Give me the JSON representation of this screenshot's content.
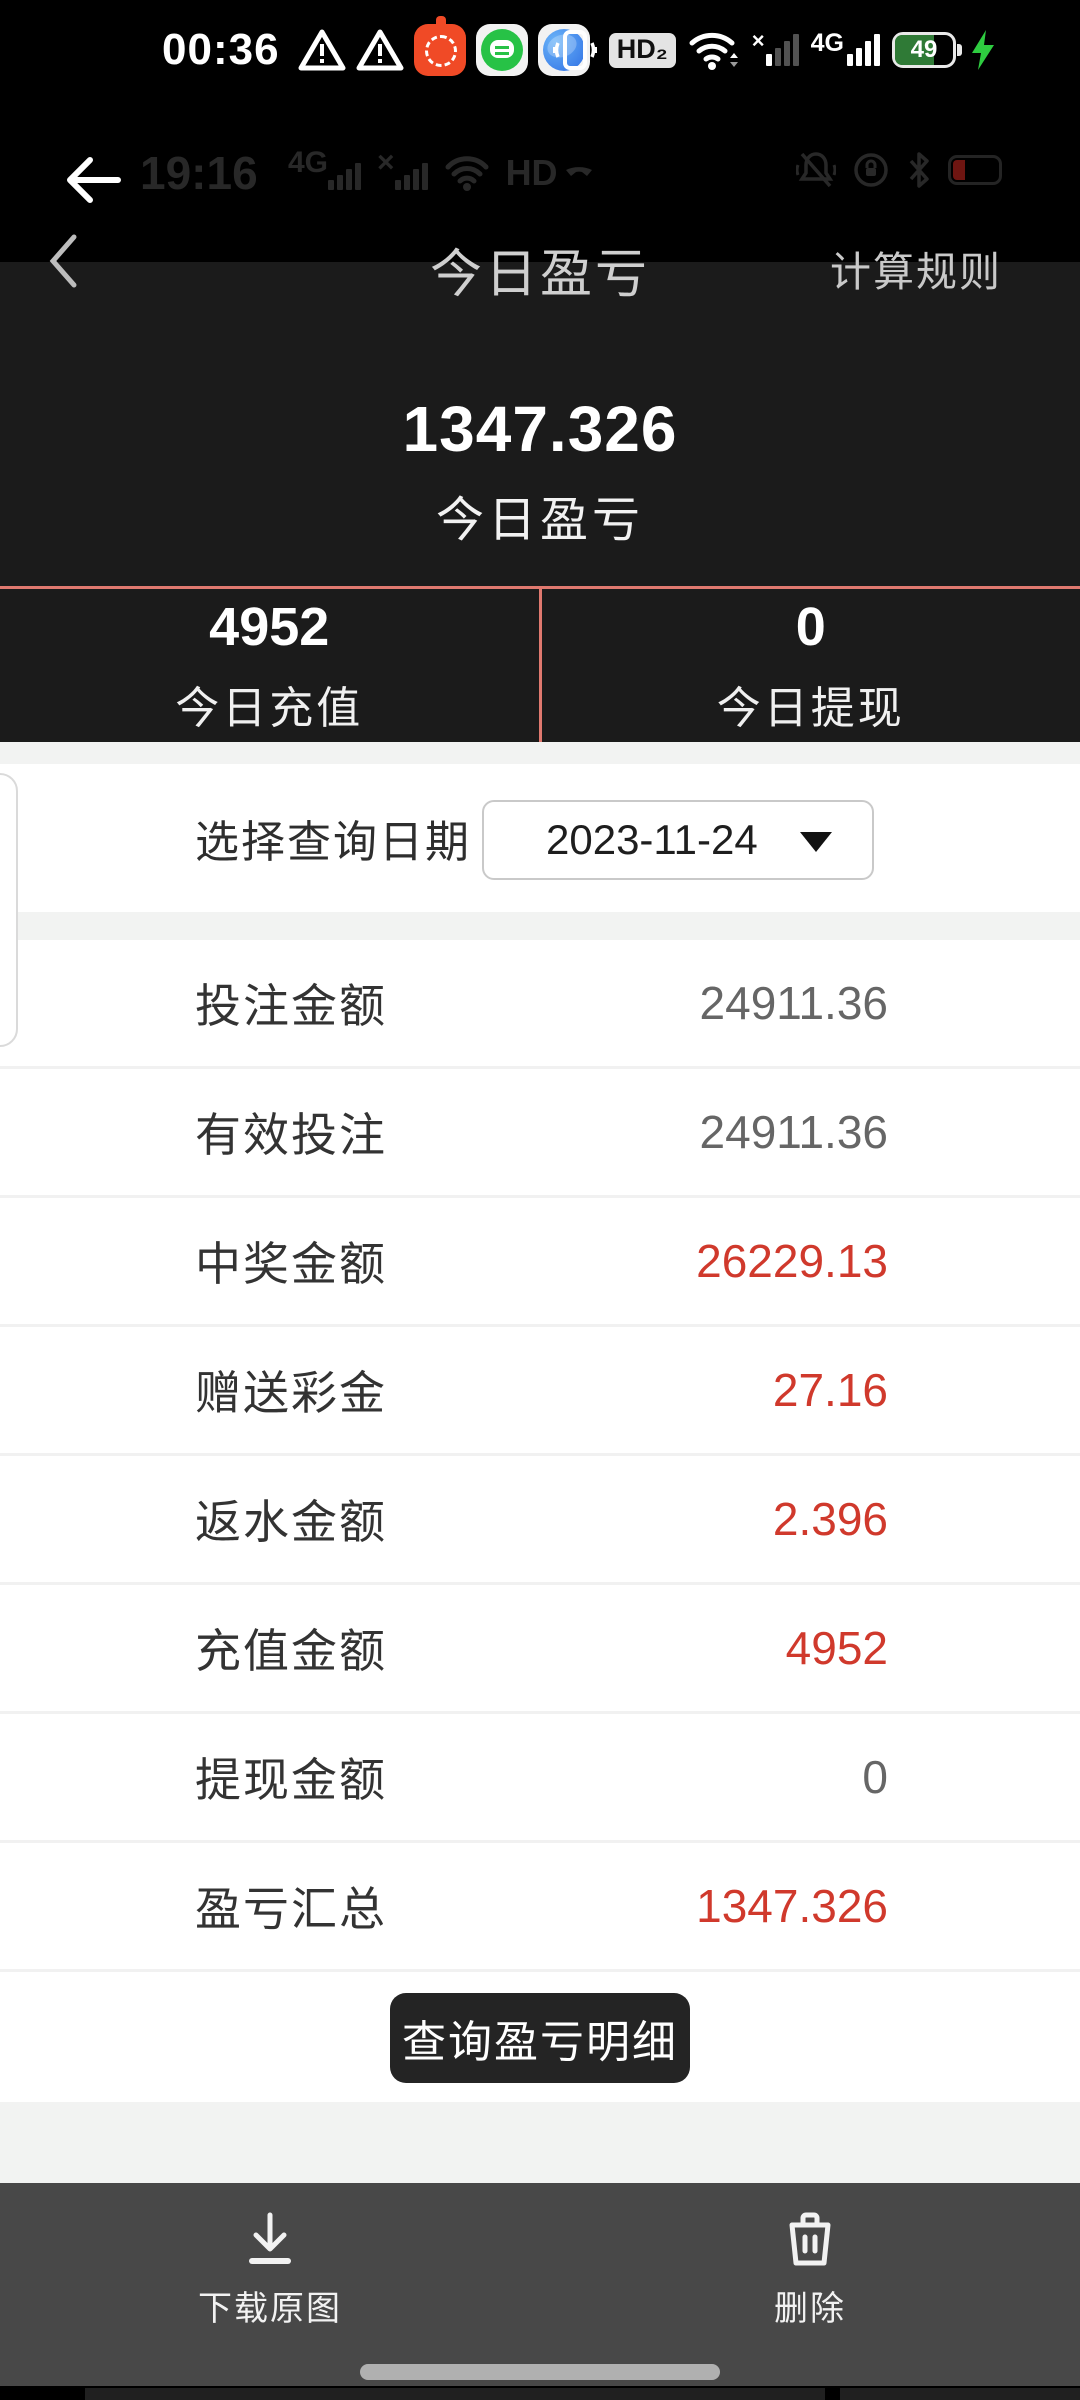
{
  "status_bar": {
    "time": "00:36",
    "hd_badge": "HD₂",
    "network_sim2": "4G",
    "battery_percent": "49"
  },
  "inner_status_bar": {
    "time": "19:16",
    "network": "4G",
    "hd": "HD"
  },
  "header": {
    "title": "今日盈亏",
    "rules_link": "计算规则"
  },
  "summary": {
    "main_value": "1347.326",
    "main_label": "今日盈亏",
    "recharge_value": "4952",
    "recharge_label": "今日充值",
    "withdraw_value": "0",
    "withdraw_label": "今日提现"
  },
  "date_picker": {
    "label": "选择查询日期",
    "value": "2023-11-24"
  },
  "table": {
    "rows": [
      {
        "label": "投注金额",
        "value": "24911.36",
        "style": "gray"
      },
      {
        "label": "有效投注",
        "value": "24911.36",
        "style": "gray"
      },
      {
        "label": "中奖金额",
        "value": "26229.13",
        "style": "red"
      },
      {
        "label": "赠送彩金",
        "value": "27.16",
        "style": "red"
      },
      {
        "label": "返水金额",
        "value": "2.396",
        "style": "red"
      },
      {
        "label": "充值金额",
        "value": "4952",
        "style": "red"
      },
      {
        "label": "提现金额",
        "value": "0",
        "style": "gray"
      },
      {
        "label": "盈亏汇总",
        "value": "1347.326",
        "style": "red"
      }
    ]
  },
  "actions": {
    "detail_button": "查询盈亏明细"
  },
  "bottom_bar": {
    "download_label": "下载原图",
    "delete_label": "删除"
  },
  "colors": {
    "value_red": "#d0392c",
    "value_gray": "#666666",
    "divider_salmon": "#e0796f",
    "panel_dark": "#1b1b1b",
    "bottom_bar": "#484848",
    "battery_green": "#2f7a36",
    "bolt_green": "#2ecc40"
  }
}
